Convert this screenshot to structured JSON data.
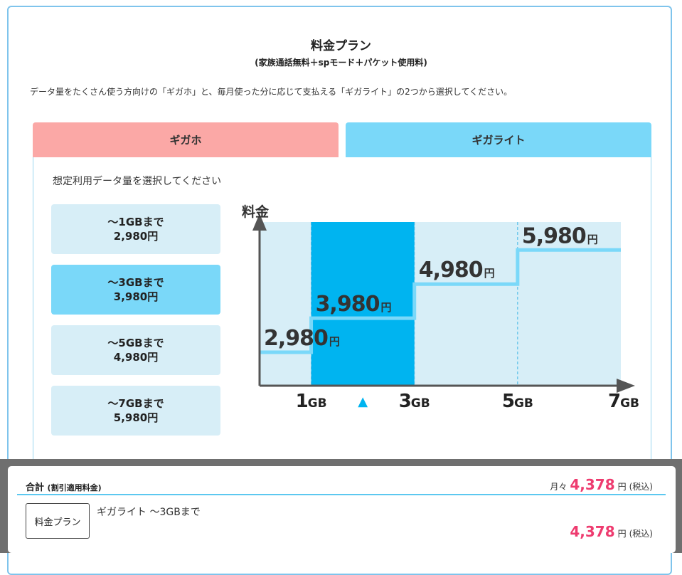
{
  "header": {
    "title": "料金プラン",
    "subtitle": "(家族通話無料＋spモード＋パケット使用料)",
    "description": "データ量をたくさん使う方向けの「ギガホ」と、毎月使った分に応じて支払える「ギガライト」の2つから選択してください。"
  },
  "tabs": [
    {
      "label": "ギガホ",
      "active": false
    },
    {
      "label": "ギガライト",
      "active": true
    }
  ],
  "panel": {
    "prompt": "想定利用データ量を選択してください",
    "options": [
      {
        "line1": "〜1GBまで",
        "line2": "2,980円",
        "selected": false
      },
      {
        "line1": "〜3GBまで",
        "line2": "3,980円",
        "selected": true
      },
      {
        "line1": "〜5GBまで",
        "line2": "4,980円",
        "selected": false
      },
      {
        "line1": "〜7GBまで",
        "line2": "5,980円",
        "selected": false
      }
    ]
  },
  "colors": {
    "accent": "#00b4f0",
    "step_line": "#7ad8f9",
    "chart_bg": "#d7eef7",
    "price": "#ee3b6f",
    "axis": "#555555"
  },
  "chart_data": {
    "type": "area",
    "ylabel": "料金",
    "x_ticks": [
      {
        "num": "1",
        "unit": "GB"
      },
      {
        "num": "3",
        "unit": "GB"
      },
      {
        "num": "5",
        "unit": "GB"
      },
      {
        "num": "7",
        "unit": "GB"
      }
    ],
    "steps": [
      {
        "from_gb": 0,
        "to_gb": 1,
        "value": 2980,
        "label_num": "2,980",
        "label_unit": "円"
      },
      {
        "from_gb": 1,
        "to_gb": 3,
        "value": 3980,
        "label_num": "3,980",
        "label_unit": "円"
      },
      {
        "from_gb": 3,
        "to_gb": 5,
        "value": 4980,
        "label_num": "4,980",
        "label_unit": "円"
      },
      {
        "from_gb": 5,
        "to_gb": 7,
        "value": 5980,
        "label_num": "5,980",
        "label_unit": "円"
      }
    ],
    "highlighted_step": 1,
    "marker": "▲"
  },
  "summary": {
    "title": "合計",
    "title_note": "(割引適用料金)",
    "monthly_prefix": "月々",
    "monthly_value": "4,378",
    "currency": "円",
    "tax_note": "(税込)",
    "plan_badge": "料金プラン",
    "plan_name": "ギガライト 〜3GBまで",
    "plan_value": "4,378"
  }
}
